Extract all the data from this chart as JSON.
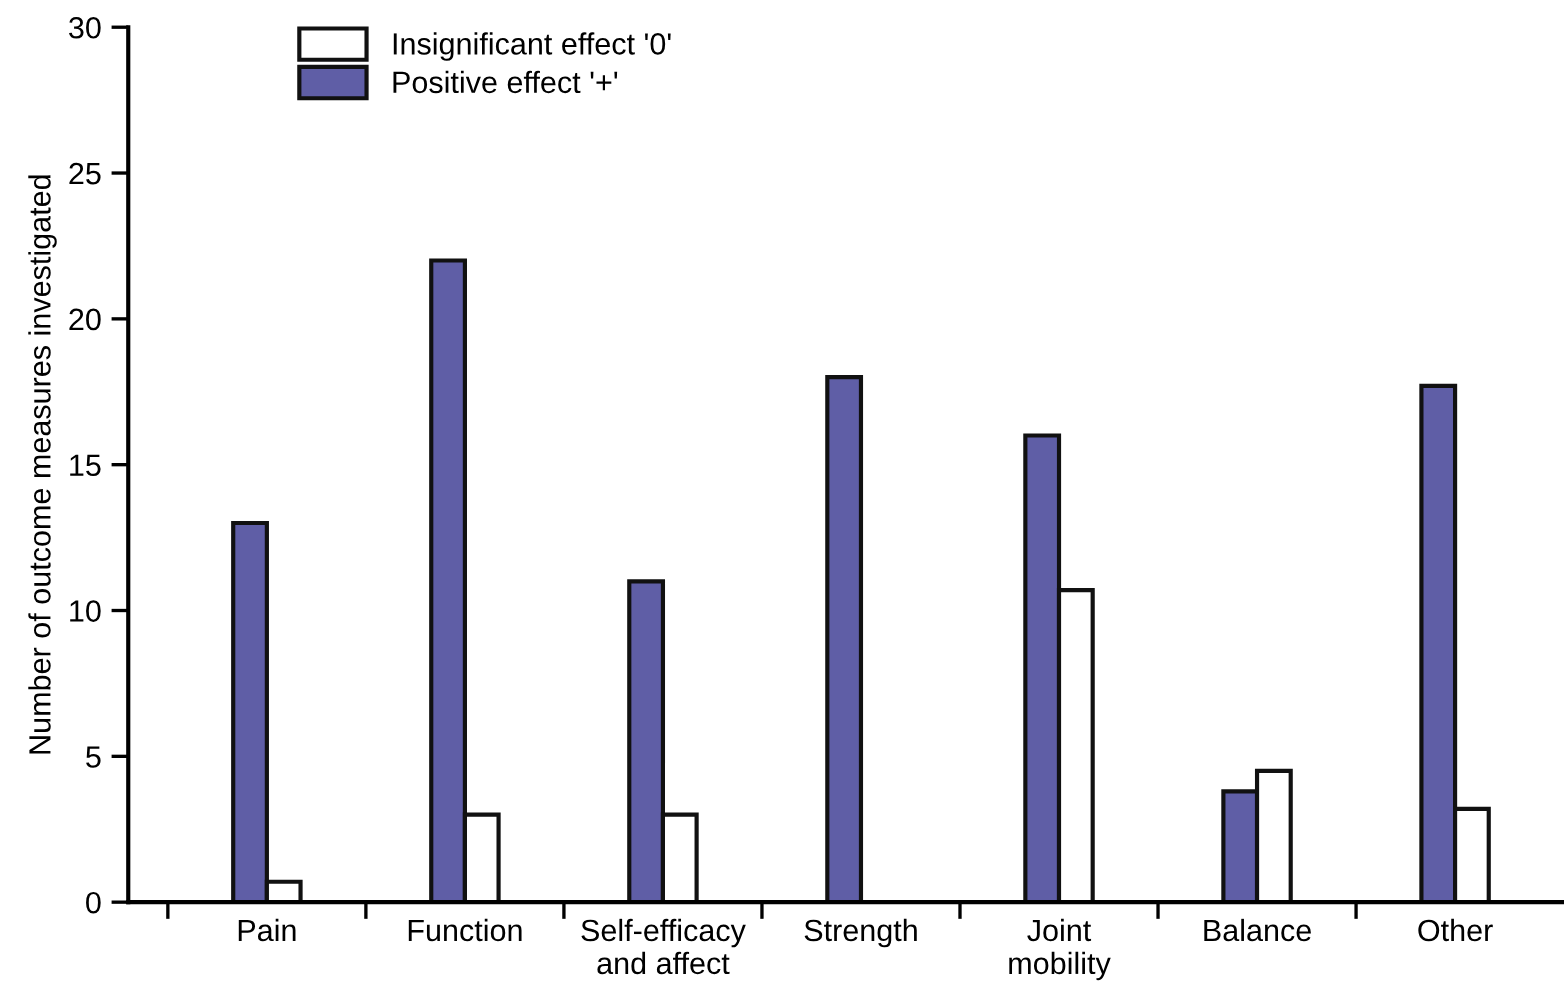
{
  "chart_data": {
    "type": "bar",
    "ylabel": "Number of outcome measures investigated",
    "categories": [
      "Pain",
      "Function",
      "Self-efficacy\nand affect",
      "Strength",
      "Joint\nmobility",
      "Balance",
      "Other"
    ],
    "series": [
      {
        "name": "Positive effect '+'",
        "color": "#5f5ea6",
        "values": [
          13,
          22,
          11,
          18,
          16,
          3.8,
          17.7
        ]
      },
      {
        "name": "Insignificant effect '0'",
        "color": "#ffffff",
        "values": [
          0.7,
          3,
          3,
          0,
          10.7,
          4.5,
          3.2
        ]
      }
    ],
    "ylim": [
      0,
      30
    ],
    "yticks": [
      0,
      5,
      10,
      15,
      20,
      25,
      30
    ],
    "grid": false,
    "legend": "top left"
  }
}
